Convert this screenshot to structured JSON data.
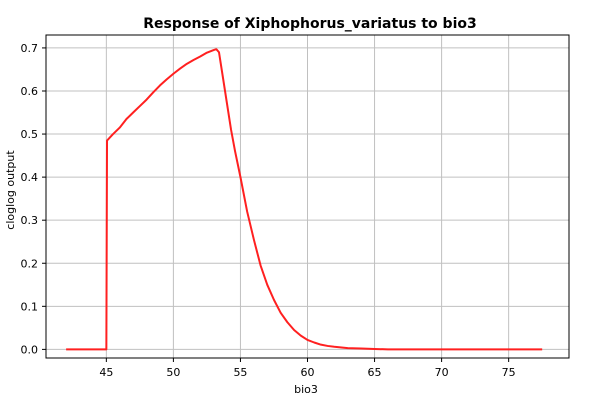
{
  "chart_data": {
    "type": "line",
    "title": "Response of Xiphophorus_variatus to bio3",
    "xlabel": "bio3",
    "ylabel": "cloglog output",
    "xlim": [
      40.5,
      79.5
    ],
    "ylim": [
      -0.02,
      0.73
    ],
    "xticks": [
      45,
      50,
      55,
      60,
      65,
      70,
      75
    ],
    "yticks": [
      0.0,
      0.1,
      0.2,
      0.3,
      0.4,
      0.5,
      0.6,
      0.7
    ],
    "ytick_labels": [
      "0.0",
      "0.1",
      "0.2",
      "0.3",
      "0.4",
      "0.5",
      "0.6",
      "0.7"
    ],
    "grid": true,
    "series": [
      {
        "color": "#ff2020",
        "x": [
          42,
          43,
          44,
          45.0,
          45.05,
          45.5,
          46,
          46.5,
          47,
          47.5,
          48,
          48.5,
          49,
          49.5,
          50,
          50.5,
          51,
          51.5,
          52,
          52.5,
          53,
          53.2,
          53.4,
          53.7,
          54,
          54.3,
          54.6,
          55,
          55.5,
          56,
          56.5,
          57,
          57.5,
          58,
          58.5,
          59,
          59.5,
          60,
          60.5,
          61,
          61.5,
          62,
          63,
          64,
          65,
          66,
          67,
          68,
          70,
          72,
          74,
          76,
          77.5
        ],
        "y": [
          0.0,
          0.0,
          0.0,
          0.0,
          0.485,
          0.5,
          0.515,
          0.535,
          0.55,
          0.565,
          0.58,
          0.597,
          0.613,
          0.627,
          0.64,
          0.652,
          0.663,
          0.672,
          0.68,
          0.689,
          0.695,
          0.697,
          0.69,
          0.63,
          0.57,
          0.51,
          0.46,
          0.4,
          0.32,
          0.255,
          0.195,
          0.15,
          0.115,
          0.085,
          0.063,
          0.045,
          0.032,
          0.022,
          0.016,
          0.011,
          0.008,
          0.006,
          0.003,
          0.002,
          0.001,
          0.0,
          0.0,
          0.0,
          0.0,
          0.0,
          0.0,
          0.0,
          0.0
        ]
      }
    ]
  }
}
